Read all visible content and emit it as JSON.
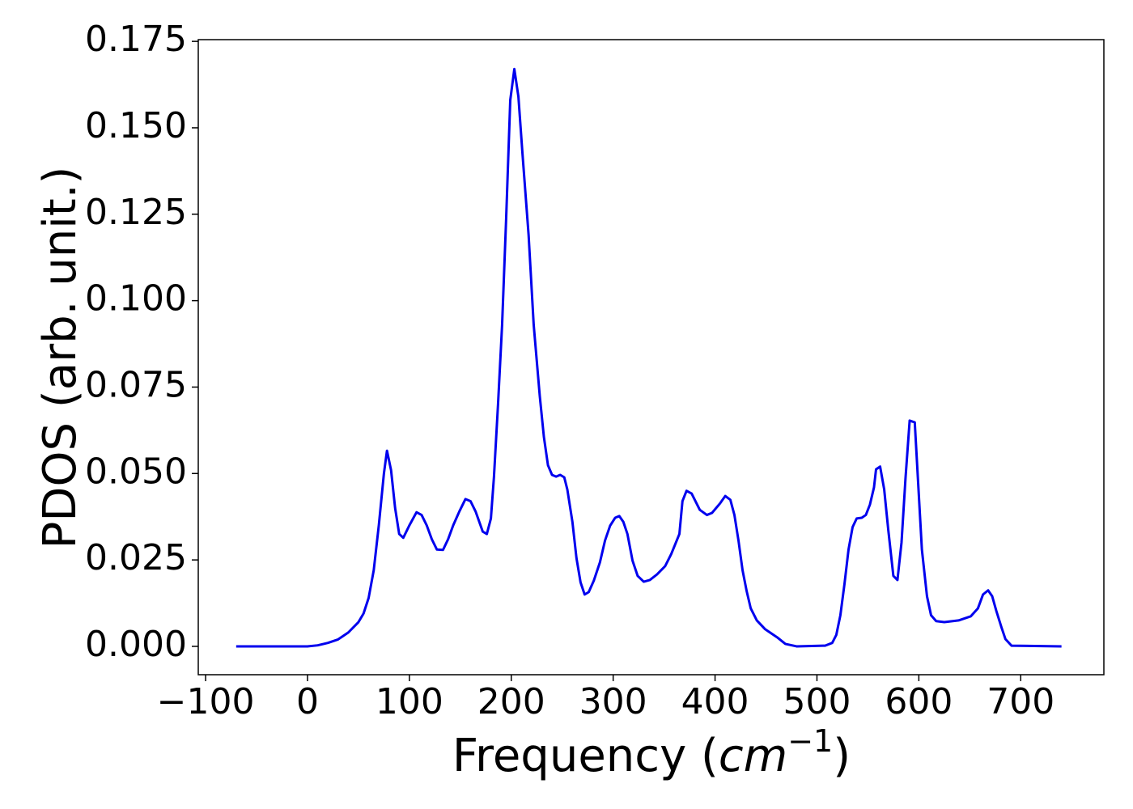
{
  "chart_data": {
    "type": "line",
    "x_label": {
      "text": "Frequency (",
      "unit": "cm",
      "exponent": "−1",
      "close": ")"
    },
    "y_label": "PDOS (arb. unit.)",
    "x": [
      -70,
      0,
      10,
      20,
      30,
      40,
      50,
      55,
      60,
      65,
      70,
      75,
      78,
      82,
      86,
      90,
      94,
      100,
      107,
      112,
      117,
      122,
      127,
      133,
      138,
      143,
      149,
      155,
      160,
      165,
      172,
      176,
      180,
      183,
      187,
      191,
      195,
      199,
      203,
      207,
      211,
      217,
      222,
      228,
      232,
      236,
      240,
      244,
      248,
      252,
      255,
      260,
      264,
      268,
      272,
      276,
      281,
      287,
      292,
      297,
      302,
      306,
      310,
      314,
      319,
      324,
      330,
      336,
      343,
      351,
      357,
      365,
      368,
      372,
      377,
      385,
      392,
      397,
      405,
      410,
      415,
      419,
      423,
      427,
      431,
      435,
      441,
      449,
      461,
      469,
      480,
      508,
      515,
      519,
      523,
      527,
      531,
      535,
      539,
      544,
      548,
      552,
      556,
      558,
      562,
      566,
      570,
      575,
      579,
      583,
      587,
      591,
      596,
      599,
      603,
      608,
      612,
      617,
      625,
      639,
      651,
      658,
      663,
      668,
      672,
      676,
      681,
      685,
      691,
      740
    ],
    "series": [
      {
        "name": "PDOS",
        "color": "#0000ee",
        "values": [
          0,
          0,
          0.0003,
          0.001,
          0.002,
          0.004,
          0.007,
          0.0095,
          0.014,
          0.022,
          0.035,
          0.05,
          0.0566,
          0.051,
          0.04,
          0.0325,
          0.0314,
          0.035,
          0.0388,
          0.038,
          0.035,
          0.031,
          0.028,
          0.0279,
          0.031,
          0.035,
          0.039,
          0.0426,
          0.042,
          0.039,
          0.0332,
          0.0325,
          0.037,
          0.049,
          0.07,
          0.093,
          0.124,
          0.158,
          0.167,
          0.159,
          0.1425,
          0.119,
          0.093,
          0.0723,
          0.0606,
          0.0524,
          0.0496,
          0.0491,
          0.0496,
          0.0489,
          0.0454,
          0.036,
          0.0255,
          0.0185,
          0.015,
          0.0157,
          0.019,
          0.0243,
          0.0306,
          0.0349,
          0.0372,
          0.0377,
          0.036,
          0.0325,
          0.0248,
          0.0204,
          0.0187,
          0.0192,
          0.0208,
          0.0232,
          0.0267,
          0.0325,
          0.042,
          0.045,
          0.0442,
          0.0395,
          0.038,
          0.0386,
          0.0414,
          0.0435,
          0.0424,
          0.038,
          0.0306,
          0.022,
          0.016,
          0.011,
          0.0075,
          0.005,
          0.0026,
          0.0007,
          0,
          0.0002,
          0.001,
          0.0033,
          0.009,
          0.018,
          0.028,
          0.0345,
          0.037,
          0.0372,
          0.038,
          0.041,
          0.046,
          0.0512,
          0.052,
          0.0454,
          0.0337,
          0.0204,
          0.0192,
          0.03,
          0.049,
          0.0653,
          0.0648,
          0.049,
          0.028,
          0.0145,
          0.009,
          0.0073,
          0.007,
          0.0075,
          0.0087,
          0.011,
          0.015,
          0.0162,
          0.0145,
          0.0103,
          0.0056,
          0.0021,
          0.0002,
          0
        ]
      }
    ],
    "xlim": [
      -107.2,
      781.6
    ],
    "ylim": [
      -0.0082,
      0.1755
    ],
    "xticks": [
      {
        "value": -100,
        "label": "−100"
      },
      0,
      100,
      200,
      300,
      400,
      500,
      600,
      700
    ],
    "yticks": [
      {
        "value": 0,
        "label": "0.000"
      },
      0.025,
      {
        "value": 0.05,
        "label": "0.050"
      },
      0.075,
      {
        "value": 0.1,
        "label": "0.100"
      },
      0.125,
      {
        "value": 0.15,
        "label": "0.150"
      },
      0.175
    ],
    "grid": false
  }
}
